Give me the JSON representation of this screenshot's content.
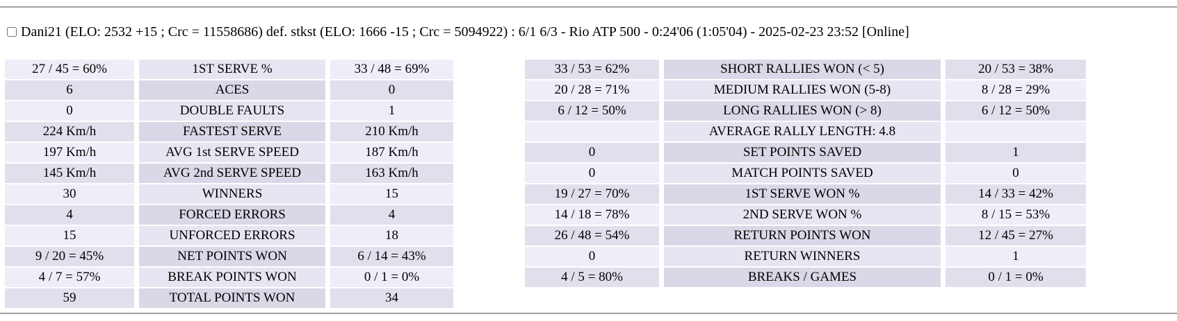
{
  "header": {
    "checkbox_checked": false,
    "text": "Dani21 (ELO: 2532 +15 ; Crc = 11558686) def. stkst (ELO: 1666 -15 ; Crc = 5094922) : 6/1 6/3 - Rio ATP 500 - 0:24'06 (1:05'04) - 2025-02-23 23:52 [Online]"
  },
  "colors": {
    "side_light": "#eeeef9",
    "side_dark": "#e0e0ed",
    "center_light": "#e6e6f2",
    "center_dark": "#d8d8e6",
    "rule": "#a0a0a0",
    "text": "#000000"
  },
  "left_table": {
    "first_row_shade": "light",
    "rows": [
      {
        "p1": "27 / 45 = 60%",
        "label": "1ST SERVE %",
        "p2": "33 / 48 = 69%"
      },
      {
        "p1": "6",
        "label": "ACES",
        "p2": "0"
      },
      {
        "p1": "0",
        "label": "DOUBLE FAULTS",
        "p2": "1"
      },
      {
        "p1": "224 Km/h",
        "label": "FASTEST SERVE",
        "p2": "210 Km/h"
      },
      {
        "p1": "197 Km/h",
        "label": "AVG 1st SERVE SPEED",
        "p2": "187 Km/h"
      },
      {
        "p1": "145 Km/h",
        "label": "AVG 2nd SERVE SPEED",
        "p2": "163 Km/h"
      },
      {
        "p1": "30",
        "label": "WINNERS",
        "p2": "15"
      },
      {
        "p1": "4",
        "label": "FORCED ERRORS",
        "p2": "4"
      },
      {
        "p1": "15",
        "label": "UNFORCED ERRORS",
        "p2": "18"
      },
      {
        "p1": "9 / 20 = 45%",
        "label": "NET POINTS WON",
        "p2": "6 / 14 = 43%"
      },
      {
        "p1": "4 / 7 = 57%",
        "label": "BREAK POINTS WON",
        "p2": "0 / 1 = 0%"
      },
      {
        "p1": "59",
        "label": "TOTAL POINTS WON",
        "p2": "34"
      }
    ]
  },
  "right_table": {
    "first_row_shade": "dark",
    "rows": [
      {
        "p1": "33 / 53 = 62%",
        "label": "SHORT RALLIES WON (< 5)",
        "p2": "20 / 53 = 38%"
      },
      {
        "p1": "20 / 28 = 71%",
        "label": "MEDIUM RALLIES WON (5-8)",
        "p2": "8 / 28 = 29%"
      },
      {
        "p1": "6 / 12 = 50%",
        "label": "LONG RALLIES WON (> 8)",
        "p2": "6 / 12 = 50%"
      },
      {
        "p1": "",
        "label": "AVERAGE RALLY LENGTH: 4.8",
        "p2": ""
      },
      {
        "p1": "0",
        "label": "SET POINTS SAVED",
        "p2": "1"
      },
      {
        "p1": "0",
        "label": "MATCH POINTS SAVED",
        "p2": "0"
      },
      {
        "p1": "19 / 27 = 70%",
        "label": "1ST SERVE WON %",
        "p2": "14 / 33 = 42%"
      },
      {
        "p1": "14 / 18 = 78%",
        "label": "2ND SERVE WON %",
        "p2": "8 / 15 = 53%"
      },
      {
        "p1": "26 / 48 = 54%",
        "label": "RETURN POINTS WON",
        "p2": "12 / 45 = 27%"
      },
      {
        "p1": "0",
        "label": "RETURN WINNERS",
        "p2": "1"
      },
      {
        "p1": "4 / 5 = 80%",
        "label": "BREAKS / GAMES",
        "p2": "0 / 1 = 0%"
      }
    ]
  }
}
